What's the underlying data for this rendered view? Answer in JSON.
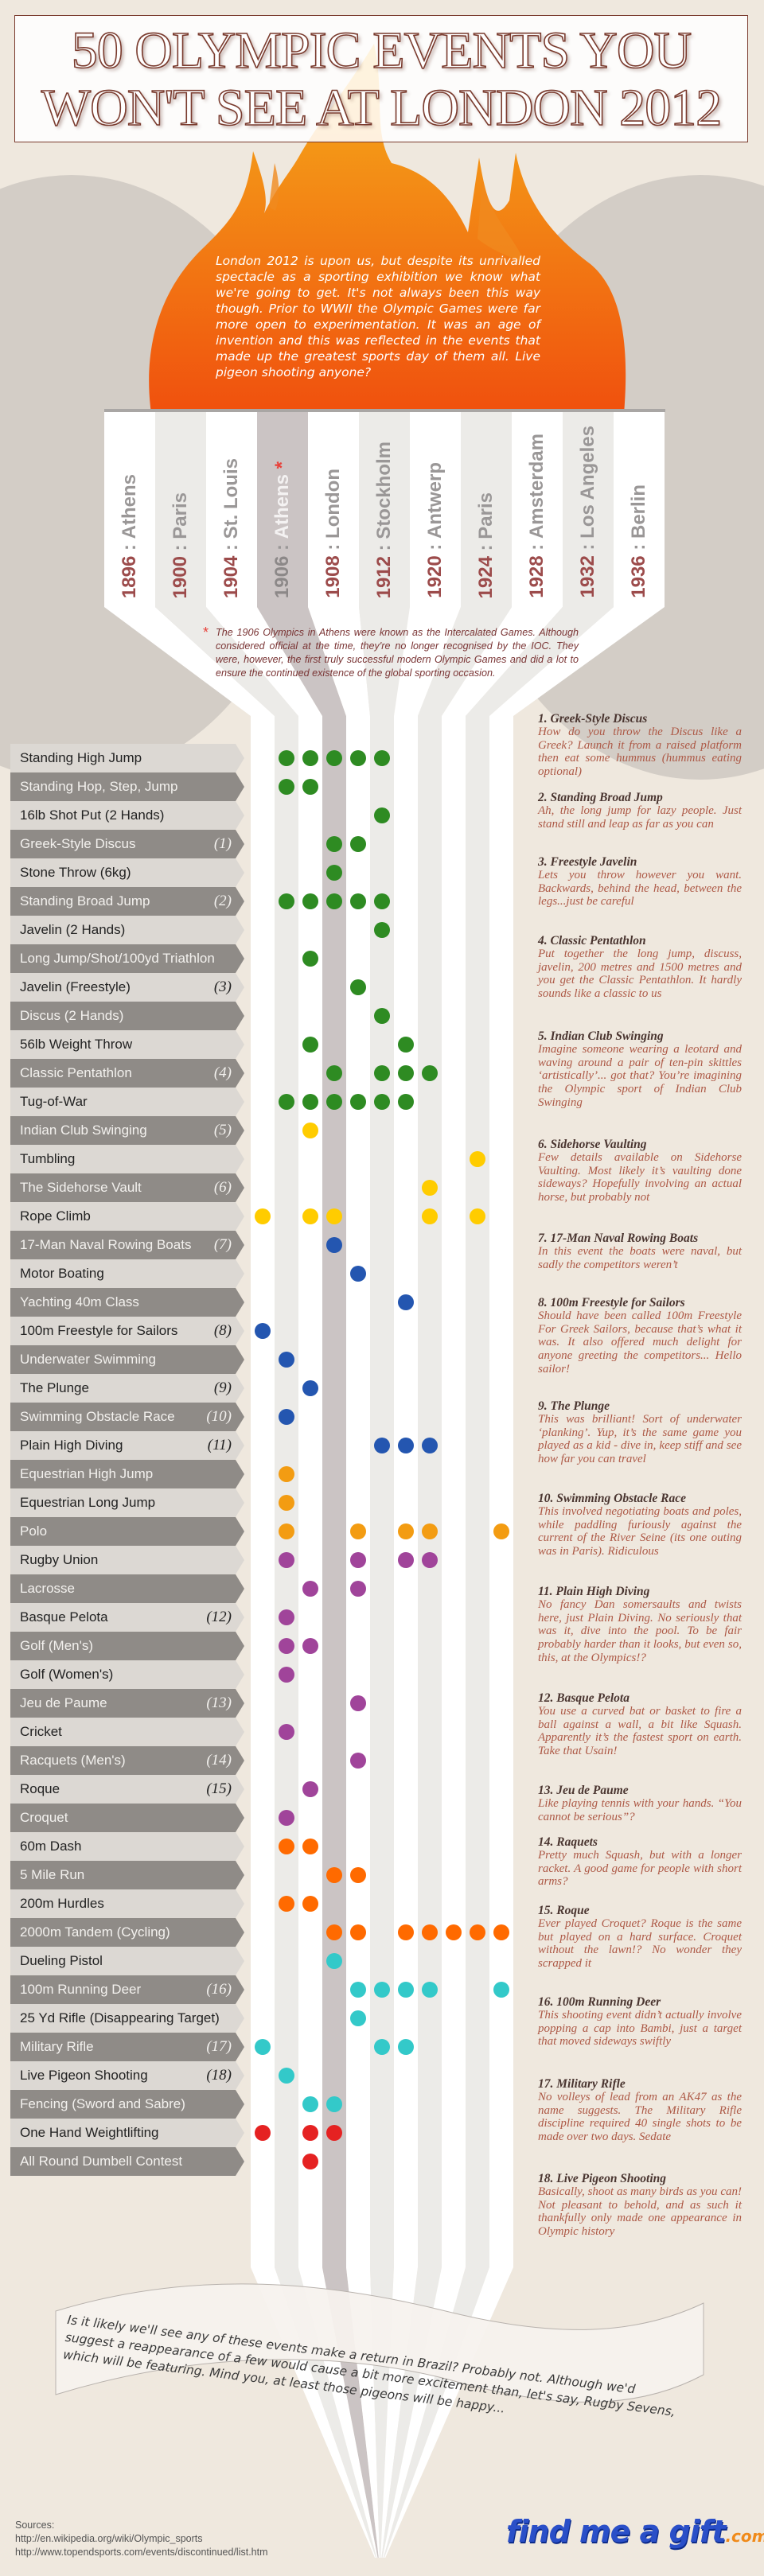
{
  "title": {
    "line1": "50 OLYMPIC EVENTS YOU",
    "line2": "WON'T SEE AT LONDON 2012"
  },
  "intro": "London 2012 is upon us, but despite its unrivalled spectacle as a sporting exhibition we know what we're going to get. It's not always been this way though. Prior to WWII the Olympic Games were far more open to experimentation. It was an age of invention and this was reflected in the events that made up the greatest sports day of them all. Live pigeon shooting anyone?",
  "footnote": {
    "marker": "*",
    "text": "The 1906 Olympics in Athens were known as the Intercalated Games. Although considered official at the time, they're no longer recognised by the IOC. They were, however, the first truly successful modern Olympic Games and did a lot to ensure the continued existence of the global sporting occasion."
  },
  "colors": {
    "athletics": "#2e8b22",
    "gymnastics": "#ffcc00",
    "water": "#2456b0",
    "equestrian": "#f39c12",
    "ball_games": "#a0449a",
    "running": "#ff6a00",
    "shooting_fencing": "#33c9c9",
    "weightlifting": "#e52222",
    "title": "#7a3b2e",
    "flame_top": "#f5b01a",
    "flame_bottom": "#f0500e"
  },
  "chart_data": {
    "type": "table",
    "columns": [
      {
        "year": "1896",
        "city": "Athens"
      },
      {
        "year": "1900",
        "city": "Paris"
      },
      {
        "year": "1904",
        "city": "St. Louis"
      },
      {
        "year": "1906",
        "city": "Athens",
        "marker": "*"
      },
      {
        "year": "1908",
        "city": "London"
      },
      {
        "year": "1912",
        "city": "Stockholm"
      },
      {
        "year": "1920",
        "city": "Antwerp"
      },
      {
        "year": "1924",
        "city": "Paris"
      },
      {
        "year": "1928",
        "city": "Amsterdam"
      },
      {
        "year": "1932",
        "city": "Los Angeles"
      },
      {
        "year": "1936",
        "city": "Berlin"
      }
    ],
    "separator": ":",
    "rows": [
      {
        "event": "Standing High Jump",
        "note": "",
        "group": "athletics",
        "years": [
          "1900",
          "1904",
          "1906",
          "1908",
          "1912"
        ]
      },
      {
        "event": "Standing Hop, Step, Jump",
        "note": "",
        "group": "athletics",
        "years": [
          "1900",
          "1904"
        ]
      },
      {
        "event": "16lb Shot Put (2 Hands)",
        "note": "",
        "group": "athletics",
        "years": [
          "1912"
        ]
      },
      {
        "event": "Greek-Style Discus",
        "note": "(1)",
        "group": "athletics",
        "years": [
          "1906",
          "1908"
        ]
      },
      {
        "event": "Stone Throw (6kg)",
        "note": "",
        "group": "athletics",
        "years": [
          "1906"
        ]
      },
      {
        "event": "Standing Broad Jump",
        "note": "(2)",
        "group": "athletics",
        "years": [
          "1900",
          "1904",
          "1906",
          "1908",
          "1912"
        ]
      },
      {
        "event": "Javelin (2 Hands)",
        "note": "",
        "group": "athletics",
        "years": [
          "1912"
        ]
      },
      {
        "event": "Long Jump/Shot/100yd Triathlon",
        "note": "",
        "group": "athletics",
        "years": [
          "1904"
        ]
      },
      {
        "event": "Javelin (Freestyle)",
        "note": "(3)",
        "group": "athletics",
        "years": [
          "1908"
        ]
      },
      {
        "event": "Discus (2 Hands)",
        "note": "",
        "group": "athletics",
        "years": [
          "1912"
        ]
      },
      {
        "event": "56lb Weight Throw",
        "note": "",
        "group": "athletics",
        "years": [
          "1904",
          "1920"
        ]
      },
      {
        "event": "Classic Pentathlon",
        "note": "(4)",
        "group": "athletics",
        "years": [
          "1906",
          "1912",
          "1920",
          "1924"
        ]
      },
      {
        "event": "Tug-of-War",
        "note": "",
        "group": "athletics",
        "years": [
          "1900",
          "1904",
          "1906",
          "1908",
          "1912",
          "1920"
        ]
      },
      {
        "event": "Indian Club Swinging",
        "note": "(5)",
        "group": "gymnastics",
        "years": [
          "1904"
        ]
      },
      {
        "event": "Tumbling",
        "note": "",
        "group": "gymnastics",
        "years": [
          "1932"
        ]
      },
      {
        "event": "The Sidehorse Vault",
        "note": "(6)",
        "group": "gymnastics",
        "years": [
          "1924"
        ]
      },
      {
        "event": "Rope Climb",
        "note": "",
        "group": "gymnastics",
        "years": [
          "1896",
          "1904",
          "1906",
          "1924",
          "1932"
        ]
      },
      {
        "event": "17-Man Naval Rowing Boats",
        "note": "(7)",
        "group": "water",
        "years": [
          "1906"
        ]
      },
      {
        "event": "Motor Boating",
        "note": "",
        "group": "water",
        "years": [
          "1908"
        ]
      },
      {
        "event": "Yachting 40m Class",
        "note": "",
        "group": "water",
        "years": [
          "1920"
        ]
      },
      {
        "event": "100m Freestyle for Sailors",
        "note": "(8)",
        "group": "water",
        "years": [
          "1896"
        ]
      },
      {
        "event": "Underwater Swimming",
        "note": "",
        "group": "water",
        "years": [
          "1900"
        ]
      },
      {
        "event": "The Plunge",
        "note": "(9)",
        "group": "water",
        "years": [
          "1904"
        ]
      },
      {
        "event": "Swimming Obstacle Race",
        "note": "(10)",
        "group": "water",
        "years": [
          "1900"
        ]
      },
      {
        "event": "Plain High Diving",
        "note": "(11)",
        "group": "water",
        "years": [
          "1912",
          "1920",
          "1924"
        ]
      },
      {
        "event": "Equestrian High Jump",
        "note": "",
        "group": "equestrian",
        "years": [
          "1900"
        ]
      },
      {
        "event": "Equestrian Long Jump",
        "note": "",
        "group": "equestrian",
        "years": [
          "1900"
        ]
      },
      {
        "event": "Polo",
        "note": "",
        "group": "equestrian",
        "years": [
          "1900",
          "1908",
          "1920",
          "1924",
          "1936"
        ]
      },
      {
        "event": "Rugby Union",
        "note": "",
        "group": "ball_games",
        "years": [
          "1900",
          "1908",
          "1920",
          "1924"
        ]
      },
      {
        "event": "Lacrosse",
        "note": "",
        "group": "ball_games",
        "years": [
          "1904",
          "1908"
        ]
      },
      {
        "event": "Basque Pelota",
        "note": "(12)",
        "group": "ball_games",
        "years": [
          "1900"
        ]
      },
      {
        "event": "Golf (Men's)",
        "note": "",
        "group": "ball_games",
        "years": [
          "1900",
          "1904"
        ]
      },
      {
        "event": "Golf (Women's)",
        "note": "",
        "group": "ball_games",
        "years": [
          "1900"
        ]
      },
      {
        "event": "Jeu de Paume",
        "note": "(13)",
        "group": "ball_games",
        "years": [
          "1908"
        ]
      },
      {
        "event": "Cricket",
        "note": "",
        "group": "ball_games",
        "years": [
          "1900"
        ]
      },
      {
        "event": "Racquets (Men's)",
        "note": "(14)",
        "group": "ball_games",
        "years": [
          "1908"
        ]
      },
      {
        "event": "Roque",
        "note": "(15)",
        "group": "ball_games",
        "years": [
          "1904"
        ]
      },
      {
        "event": "Croquet",
        "note": "",
        "group": "ball_games",
        "years": [
          "1900"
        ]
      },
      {
        "event": "60m Dash",
        "note": "",
        "group": "running",
        "years": [
          "1900",
          "1904"
        ]
      },
      {
        "event": "5 Mile Run",
        "note": "",
        "group": "running",
        "years": [
          "1906",
          "1908"
        ]
      },
      {
        "event": "200m Hurdles",
        "note": "",
        "group": "running",
        "years": [
          "1900",
          "1904"
        ]
      },
      {
        "event": "2000m Tandem (Cycling)",
        "note": "",
        "group": "running",
        "years": [
          "1906",
          "1908",
          "1920",
          "1924",
          "1928",
          "1932",
          "1936"
        ]
      },
      {
        "event": "Dueling Pistol",
        "note": "",
        "group": "shooting_fencing",
        "years": [
          "1906"
        ]
      },
      {
        "event": "100m Running Deer",
        "note": "(16)",
        "group": "shooting_fencing",
        "years": [
          "1908",
          "1912",
          "1920",
          "1924",
          "1936"
        ]
      },
      {
        "event": "25 Yd Rifle (Disappearing Target)",
        "note": "",
        "group": "shooting_fencing",
        "years": [
          "1908"
        ]
      },
      {
        "event": "Military Rifle",
        "note": "(17)",
        "group": "shooting_fencing",
        "years": [
          "1896",
          "1912",
          "1920"
        ]
      },
      {
        "event": "Live Pigeon Shooting",
        "note": "(18)",
        "group": "shooting_fencing",
        "years": [
          "1900"
        ]
      },
      {
        "event": "Fencing (Sword and Sabre)",
        "note": "",
        "group": "shooting_fencing",
        "years": [
          "1904",
          "1906"
        ]
      },
      {
        "event": "One Hand Weightlifting",
        "note": "",
        "group": "weightlifting",
        "years": [
          "1896",
          "1904",
          "1906"
        ]
      },
      {
        "event": "All Round Dumbell Contest",
        "note": "",
        "group": "weightlifting",
        "years": [
          "1904"
        ]
      }
    ]
  },
  "descriptions": [
    {
      "title": "1. Greek-Style Discus",
      "body": "How do you throw the Discus like a Greek? Launch it from a raised platform then eat some hummus (hummus eating optional)"
    },
    {
      "title": "2. Standing Broad Jump",
      "body": "Ah, the long jump for lazy people. Just stand still and leap as far as you can"
    },
    {
      "title": "3. Freestyle Javelin",
      "body": "Lets you throw however you want. Backwards, behind the head, between the legs...just be careful"
    },
    {
      "title": "4. Classic Pentathlon",
      "body": "Put together the long jump, discuss, javelin, 200 metres and 1500 metres and you get the Classic Pentathlon. It hardly sounds like a classic to us"
    },
    {
      "title": "5. Indian Club Swinging",
      "body": "Imagine someone wearing a leotard and waving around a pair of ten-pin skittles ‘artistically’... got that? You’re imagining the Olympic sport of Indian Club Swinging"
    },
    {
      "title": "6. Sidehorse Vaulting",
      "body": "Few details available on Sidehorse Vaulting. Most likely it’s vaulting done sideways? Hopefully involving an actual horse, but probably not"
    },
    {
      "title": "7. 17-Man Naval Rowing Boats",
      "body": "In this event the boats were naval, but sadly the competitors weren’t"
    },
    {
      "title": "8. 100m Freestyle for Sailors",
      "body": "Should have been called 100m Freestyle For Greek Sailors, because that’s what it was. It also offered much delight for anyone greeting the competitors... Hello sailor!"
    },
    {
      "title": "9. The Plunge",
      "body": "This was brilliant! Sort of underwater ‘planking’. Yup, it’s the same game you played as a kid - dive in, keep stiff and see how far you can travel"
    },
    {
      "title": "10. Swimming Obstacle Race",
      "body": "This involved negotiating boats and poles, while paddling furiously against the current of the River Seine (its one outing was in Paris). Ridiculous"
    },
    {
      "title": "11. Plain High Diving",
      "body": "No fancy Dan somersaults and twists here, just Plain Diving. No seriously that was it, dive into the pool. To be fair probably harder than it looks, but even so, this, at the Olympics!?"
    },
    {
      "title": "12. Basque Pelota",
      "body": "You use a curved bat or basket to fire a ball against a wall, a bit like Squash. Apparently it’s the fastest sport on earth. Take that Usain!"
    },
    {
      "title": "13. Jeu de Paume",
      "body": "Like playing tennis with your hands. “You cannot be serious”?"
    },
    {
      "title": "14. Raquets",
      "body": "Pretty much Squash, but with a longer racket. A good game for people with short arms?"
    },
    {
      "title": "15. Roque",
      "body": "Ever played Croquet? Roque is the same but played on a hard surface. Croquet without the lawn!? No wonder they scrapped it"
    },
    {
      "title": "16. 100m Running Deer",
      "body": "This shooting event didn’t actually involve popping a cap into Bambi, just a target that moved sideways swiftly"
    },
    {
      "title": "17. Military Rifle",
      "body": "No volleys of lead from an AK47 as the name suggests. The Military Rifle discipline required 40 single shots to be made over two days. Sedate"
    },
    {
      "title": "18. Live Pigeon Shooting",
      "body": "Basically, shoot as many birds as you can! Not pleasant to behold, and as such it thankfully only made one appearance in Olympic history"
    }
  ],
  "closing": "Is it likely we'll see any of these events make a return in Brazil? Probably not. Although we'd suggest a reappearance of a few would cause a bit more excitement than, let's say, Rugby Sevens, which will be featuring. Mind you, at least those pigeons will be happy...",
  "sources": {
    "label": "Sources:",
    "links": [
      "http://en.wikipedia.org/wiki/Olympic_sports",
      "http://www.topendsports.com/events/discontinued/list.htm"
    ]
  },
  "logo": {
    "text": "find me a gift",
    "suffix": ".com"
  }
}
